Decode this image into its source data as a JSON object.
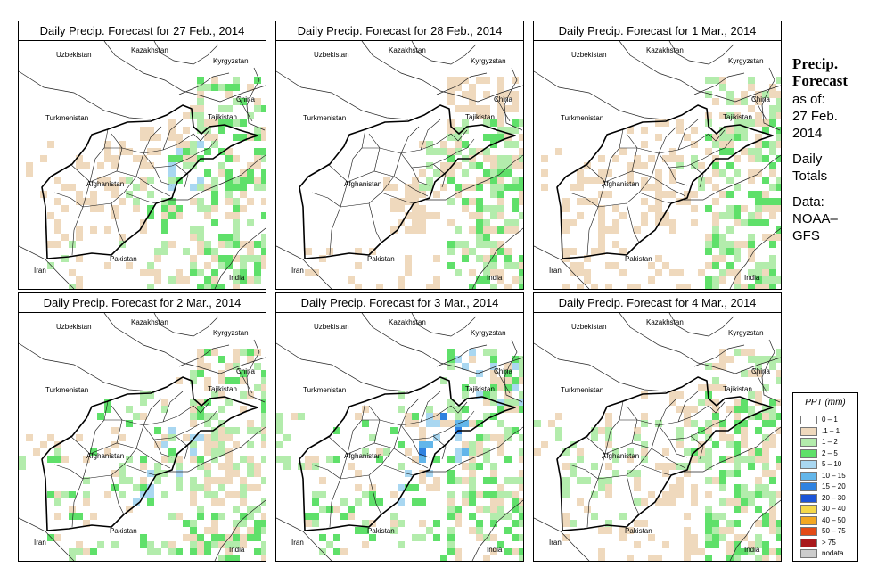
{
  "panels": [
    {
      "title": "Daily Precip. Forecast for  27 Feb., 2014",
      "precip": {
        "high": 4,
        "south": 3,
        "northeast": 3,
        "central": 1,
        "east": 3
      }
    },
    {
      "title": "Daily Precip. Forecast for  28 Feb., 2014",
      "precip": {
        "high": 2,
        "south": 1,
        "northeast": 1,
        "central": 0,
        "east": 3
      }
    },
    {
      "title": "Daily Precip. Forecast for  1 Mar., 2014",
      "precip": {
        "high": 2,
        "south": 1,
        "northeast": 2,
        "central": 1,
        "east": 3
      }
    },
    {
      "title": "Daily Precip. Forecast for  2 Mar., 2014",
      "precip": {
        "high": 4,
        "south": 4,
        "northeast": 3,
        "central": 3,
        "east": 2
      }
    },
    {
      "title": "Daily Precip. Forecast for  3 Mar., 2014",
      "precip": {
        "high": 6,
        "south": 4,
        "northeast": 4,
        "central": 3,
        "east": 3
      }
    },
    {
      "title": "Daily Precip. Forecast for  4 Mar., 2014",
      "precip": {
        "high": 3,
        "south": 1,
        "northeast": 2,
        "central": 2,
        "east": 3
      }
    }
  ],
  "map_labels": {
    "uzbekistan": "Uzbekistan",
    "kazakhstan": "Kazakhstan",
    "kyrgyzstan": "Kyrgyzstan",
    "china": "China",
    "tajikistan": "Tajikistan",
    "turkmenistan": "Turkmenistan",
    "afghanistan": "Afghanistan",
    "pakistan": "Pakistan",
    "iran": "Iran",
    "india": "India"
  },
  "sidebar": {
    "heading_1": "Precip.",
    "heading_2": "Forecast",
    "as_of": "as of:",
    "date_1": "27 Feb.",
    "date_2": "2014",
    "totals_1": "Daily",
    "totals_2": "Totals",
    "data_1": "Data:",
    "data_2": "NOAA–",
    "data_3": "GFS"
  },
  "legend": {
    "title": "PPT (mm)",
    "items": [
      {
        "label": "0 – 1",
        "color": "#ffffff"
      },
      {
        "label": ".1 – 1",
        "color": "#efd9bd"
      },
      {
        "label": "1 – 2",
        "color": "#b3ecac"
      },
      {
        "label": "2 – 5",
        "color": "#5fe06a"
      },
      {
        "label": "5 – 10",
        "color": "#a9d7f1"
      },
      {
        "label": "10 – 15",
        "color": "#63b6ea"
      },
      {
        "label": "15 – 20",
        "color": "#2f82e0"
      },
      {
        "label": "20 – 30",
        "color": "#1c55d8"
      },
      {
        "label": "30 – 40",
        "color": "#f5d84a"
      },
      {
        "label": "40 – 50",
        "color": "#f3a722"
      },
      {
        "label": "50 – 75",
        "color": "#e34a16"
      },
      {
        "label": "> 75",
        "color": "#a9191c"
      },
      {
        "label": "nodata",
        "color": "#cccccc"
      }
    ]
  }
}
